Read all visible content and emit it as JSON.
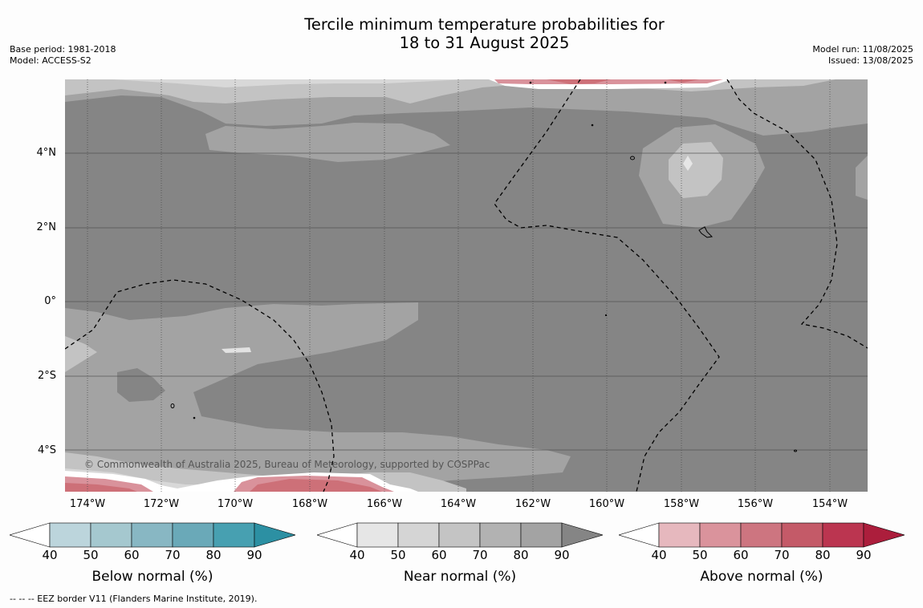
{
  "header": {
    "title_line1": "Tercile minimum temperature probabilities for",
    "title_line2": "18 to 31 August 2025",
    "base_period": "Base period: 1981-2018",
    "model": "Model: ACCESS-S2",
    "model_run": "Model run: 11/08/2025",
    "issued": "Issued: 13/08/2025"
  },
  "map": {
    "lat_labels": [
      "4°N",
      "2°N",
      "0°",
      "2°S",
      "4°S"
    ],
    "lon_labels": [
      "174°W",
      "172°W",
      "170°W",
      "168°W",
      "166°W",
      "164°W",
      "162°W",
      "160°W",
      "158°W",
      "156°W",
      "154°W"
    ],
    "copyright": "© Commonwealth of Australia 2025, Bureau of Meteorology, supported by COSPPac",
    "colors": {
      "near_90": "#858585",
      "near_80": "#a3a3a3",
      "near_70": "#c3c3c3",
      "near_60": "#d8d8d8",
      "above_60": "#d9929b",
      "above_70": "#cd7078"
    }
  },
  "legend": {
    "below": {
      "label": "Below normal (%)",
      "ticks": [
        "40",
        "50",
        "60",
        "70",
        "80",
        "90"
      ],
      "colors": [
        "#ffffff",
        "#bcd5dc",
        "#a5c8cf",
        "#88b7c3",
        "#6aa9b8",
        "#47a0b1",
        "#2c90a3"
      ]
    },
    "near": {
      "label": "Near normal (%)",
      "ticks": [
        "40",
        "50",
        "60",
        "70",
        "80",
        "90"
      ],
      "colors": [
        "#ffffff",
        "#e6e6e6",
        "#d5d5d5",
        "#c4c4c4",
        "#b2b2b2",
        "#a3a3a3",
        "#858585"
      ]
    },
    "above": {
      "label": "Above normal (%)",
      "ticks": [
        "40",
        "50",
        "60",
        "70",
        "80",
        "90"
      ],
      "colors": [
        "#ffffff",
        "#e6b8be",
        "#da939c",
        "#cd7580",
        "#c45a68",
        "#bb3550",
        "#ac1e3c"
      ]
    }
  },
  "footnote": "-- -- -- EEZ border V11 (Flanders Marine Institute, 2019)."
}
